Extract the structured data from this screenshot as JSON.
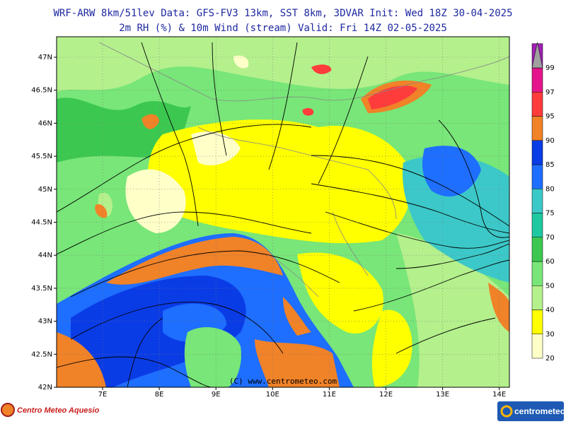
{
  "header": {
    "title": "WRF-ARW 8km/51lev  Data: GFS-FV3 13km, SST 8km, 3DVAR  Init: Wed 18Z 30-04-2025",
    "subtitle": "2m RH (%) & 10m Wind (stream)  Valid: Fri 14Z 02-05-2025"
  },
  "map": {
    "lat_labels": [
      "47N",
      "46.5N",
      "46N",
      "45.5N",
      "45N",
      "44.5N",
      "44N",
      "43.5N",
      "43N",
      "42.5N",
      "42N"
    ],
    "lon_labels": [
      "7E",
      "8E",
      "9E",
      "10E",
      "11E",
      "12E",
      "13E",
      "14E"
    ],
    "watermark": "(C) www.centrometeo.com"
  },
  "legend": {
    "labels": [
      "20",
      "30",
      "40",
      "50",
      "60",
      "70",
      "75",
      "80",
      "85",
      "90",
      "95",
      "97",
      "99"
    ],
    "colors": [
      "#ffffc8",
      "#ffff00",
      "#b4f08c",
      "#78e678",
      "#3cc850",
      "#1ec8a0",
      "#3cc8c8",
      "#1e6eff",
      "#0a3ce6",
      "#f08228",
      "#ff3c3c",
      "#e6148c",
      "#a01eb4"
    ],
    "over_color": "#a0a0a0"
  },
  "footer": {
    "left_logo": "Centro Meteo Aquesio",
    "right_logo": "centrometeo"
  }
}
